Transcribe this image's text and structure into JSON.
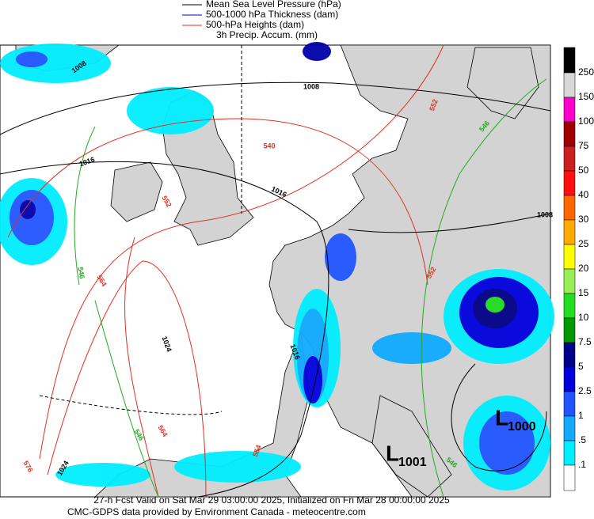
{
  "legend": [
    {
      "text": "Mean Sea Level Pressure (hPa)",
      "color": "#000000"
    },
    {
      "text": "500-1000 hPa Thickness (dam)",
      "color": "#0000cc"
    },
    {
      "text": "500-hPa Heights (dam)",
      "color": "#e03020"
    },
    {
      "text": "3h Precip. Accum. (mm)",
      "color": null
    }
  ],
  "colorbar": {
    "labels": [
      "250",
      "150",
      "100",
      "75",
      "50",
      "40",
      "30",
      "25",
      "20",
      "15",
      "10",
      "7.5",
      "5",
      "2.5",
      "1",
      ".5",
      ".1"
    ],
    "colors": [
      "#000000",
      "#d8d8d8",
      "#ff00cc",
      "#a00000",
      "#cc2020",
      "#ff1010",
      "#ff6600",
      "#ffaa00",
      "#ffff00",
      "#99ee55",
      "#22dd22",
      "#009900",
      "#000088",
      "#0000dd",
      "#2255ff",
      "#11aaff",
      "#00eeff",
      "#ffffff"
    ]
  },
  "map_labels": [
    {
      "text": "1008",
      "color": "#000000"
    },
    {
      "text": "1008",
      "color": "#000000"
    },
    {
      "text": "1016",
      "color": "#000000"
    },
    {
      "text": "1016",
      "color": "#000000"
    },
    {
      "text": "1008",
      "color": "#000000"
    },
    {
      "text": "1016",
      "color": "#000000"
    },
    {
      "text": "1024",
      "color": "#000000"
    },
    {
      "text": "1024",
      "color": "#000000"
    },
    {
      "text": "540",
      "color": "#e03020"
    },
    {
      "text": "552",
      "color": "#e03020"
    },
    {
      "text": "564",
      "color": "#e03020"
    },
    {
      "text": "552",
      "color": "#e03020"
    },
    {
      "text": "552",
      "color": "#e03020"
    },
    {
      "text": "564",
      "color": "#e03020"
    },
    {
      "text": "564",
      "color": "#e03020"
    },
    {
      "text": "576",
      "color": "#e03020"
    },
    {
      "text": "546",
      "color": "#22aa22"
    },
    {
      "text": "546",
      "color": "#22aa22"
    },
    {
      "text": "546",
      "color": "#22aa22"
    },
    {
      "text": "546",
      "color": "#22aa22"
    }
  ],
  "lows": [
    {
      "letter": "L",
      "value": "1000"
    },
    {
      "letter": "L",
      "value": "1001"
    }
  ],
  "footer": [
    "27-h Fcst Valid on Sat Mar 29 03:00:00 2025, Initialized on Fri Mar 28 00:00:00 2025",
    "CMC-GDPS data provided by Environment Canada - meteocentre.com"
  ]
}
